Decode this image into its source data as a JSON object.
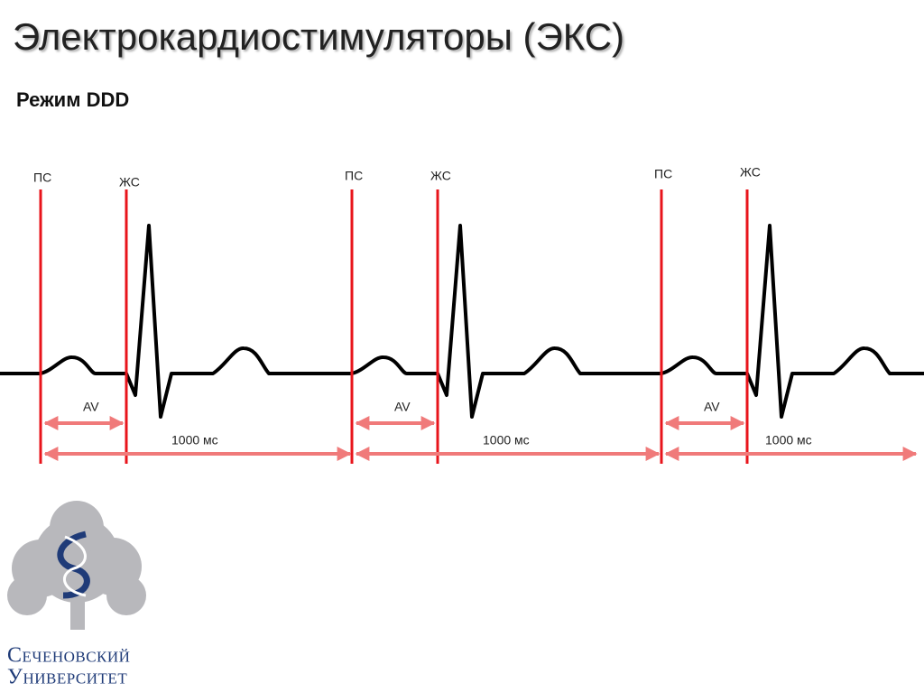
{
  "title": "Электрокардиостимуляторы (ЭКС)",
  "subtitle": "Режим DDD",
  "cycles": [
    {
      "atrial": "ПС",
      "ventricular": "ЖС",
      "av": "AV",
      "interval": "1000 мс"
    },
    {
      "atrial": "ПС",
      "ventricular": "ЖС",
      "av": "AV",
      "interval": "1000 мс"
    },
    {
      "atrial": "ПС",
      "ventricular": "ЖС",
      "av": "AV",
      "interval": "1000 мс"
    }
  ],
  "logo": {
    "line1": "Сеченовский",
    "line2": "Университет"
  }
}
